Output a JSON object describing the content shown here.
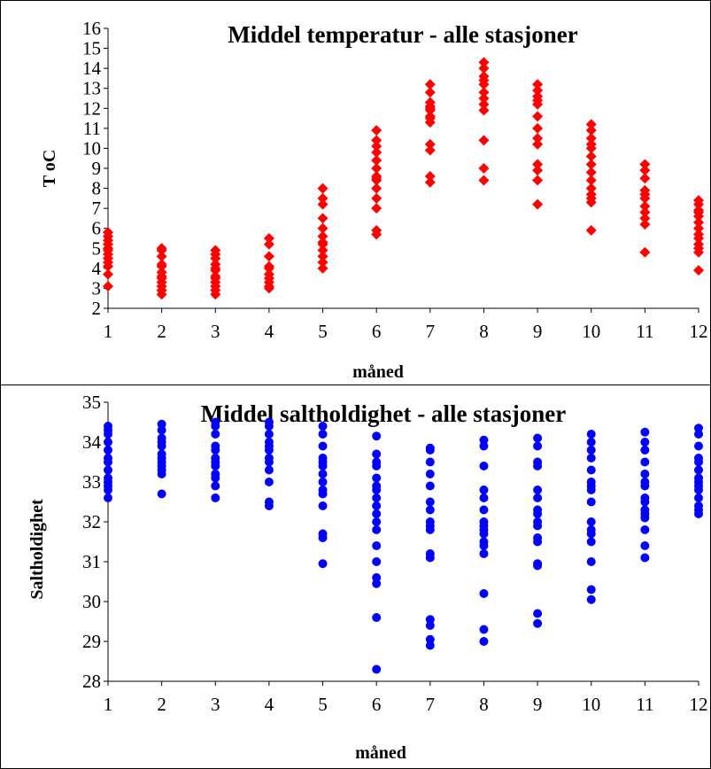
{
  "chart_data": [
    {
      "type": "scatter",
      "title": "Middel temperatur - alle stasjoner",
      "xlabel": "måned",
      "ylabel": "T oC",
      "xlim": [
        1,
        12
      ],
      "ylim": [
        2,
        16
      ],
      "x_ticks": [
        "1",
        "2",
        "3",
        "4",
        "5",
        "6",
        "7",
        "8",
        "9",
        "10",
        "11",
        "12"
      ],
      "y_ticks": [
        "2",
        "3",
        "4",
        "5",
        "6",
        "7",
        "8",
        "9",
        "10",
        "11",
        "12",
        "13",
        "14",
        "15",
        "16"
      ],
      "marker": "diamond",
      "color": "#ff0000",
      "grid": false,
      "series": [
        {
          "x": [
            1,
            1,
            1,
            1,
            1,
            1,
            1,
            1,
            1,
            1,
            1,
            1,
            2,
            2,
            2,
            2,
            2,
            2,
            2,
            2,
            2,
            2,
            2,
            2,
            3,
            3,
            3,
            3,
            3,
            3,
            3,
            3,
            3,
            3,
            3,
            3,
            4,
            4,
            4,
            4,
            4,
            4,
            4,
            4,
            4,
            4,
            5,
            5,
            5,
            5,
            5,
            5,
            5,
            5,
            5,
            5,
            5,
            5,
            6,
            6,
            6,
            6,
            6,
            6,
            6,
            6,
            6,
            6,
            6,
            6,
            6,
            6,
            7,
            7,
            7,
            7,
            7,
            7,
            7,
            7,
            7,
            7,
            7,
            7,
            7,
            8,
            8,
            8,
            8,
            8,
            8,
            8,
            8,
            8,
            8,
            8,
            8,
            9,
            9,
            9,
            9,
            9,
            9,
            9,
            9,
            9,
            9,
            9,
            9,
            9,
            10,
            10,
            10,
            10,
            10,
            10,
            10,
            10,
            10,
            10,
            10,
            10,
            10,
            10,
            11,
            11,
            11,
            11,
            11,
            11,
            11,
            11,
            11,
            11,
            11,
            12,
            12,
            12,
            12,
            12,
            12,
            12,
            12,
            12,
            12,
            12,
            12,
            12
          ],
          "y": [
            5.8,
            5.6,
            5.4,
            5.2,
            4.9,
            4.7,
            4.5,
            4.3,
            4.1,
            3.7,
            3.1,
            5.0,
            5.0,
            4.9,
            4.6,
            4.1,
            3.8,
            3.5,
            3.3,
            3.1,
            2.9,
            2.7,
            3.6,
            4.2,
            4.9,
            4.7,
            4.5,
            4.2,
            3.9,
            3.6,
            3.3,
            3.1,
            2.9,
            2.7,
            4.0,
            3.5,
            5.5,
            5.2,
            4.6,
            4.1,
            3.7,
            3.5,
            3.3,
            3.1,
            3.0,
            4.0,
            8.0,
            7.5,
            7.2,
            6.5,
            6.0,
            5.6,
            5.2,
            4.9,
            4.6,
            4.3,
            4.0,
            5.3,
            10.9,
            10.4,
            10.1,
            9.8,
            9.4,
            9.0,
            8.6,
            8.4,
            8.0,
            7.5,
            7.0,
            5.9,
            5.7,
            8.5,
            13.2,
            12.8,
            12.3,
            12.1,
            11.9,
            11.6,
            11.3,
            10.2,
            9.9,
            8.6,
            8.3,
            12.0,
            11.5,
            14.3,
            14.0,
            13.6,
            13.2,
            12.8,
            12.5,
            12.2,
            11.9,
            10.4,
            9.0,
            8.4,
            13.4,
            13.2,
            12.9,
            12.6,
            12.2,
            11.6,
            11.0,
            10.5,
            10.2,
            9.2,
            8.9,
            8.4,
            7.2,
            12.4,
            11.2,
            10.9,
            10.5,
            10.0,
            9.6,
            9.2,
            8.8,
            8.4,
            8.0,
            7.7,
            7.5,
            7.3,
            5.9,
            10.2,
            9.2,
            8.9,
            8.5,
            7.9,
            7.5,
            7.1,
            6.8,
            6.5,
            6.2,
            4.8,
            7.7,
            7.4,
            7.2,
            6.9,
            6.6,
            6.3,
            6.0,
            5.7,
            5.5,
            5.2,
            5.0,
            4.8,
            3.9,
            6.8
          ]
        }
      ]
    },
    {
      "type": "scatter",
      "title": "Middel saltholdighet - alle stasjoner",
      "xlabel": "måned",
      "ylabel": "Saltholdighet",
      "xlim": [
        1,
        12
      ],
      "ylim": [
        28,
        35
      ],
      "x_ticks": [
        "1",
        "2",
        "3",
        "4",
        "5",
        "6",
        "7",
        "8",
        "9",
        "10",
        "11",
        "12"
      ],
      "y_ticks": [
        "28",
        "29",
        "30",
        "31",
        "32",
        "33",
        "34",
        "35"
      ],
      "marker": "circle",
      "color": "#0000ff",
      "grid": false,
      "series": [
        {
          "x": [
            1,
            1,
            1,
            1,
            1,
            1,
            1,
            1,
            1,
            1,
            1,
            1,
            1,
            2,
            2,
            2,
            2,
            2,
            2,
            2,
            2,
            2,
            2,
            2,
            2,
            3,
            3,
            3,
            3,
            3,
            3,
            3,
            3,
            3,
            3,
            3,
            3,
            4,
            4,
            4,
            4,
            4,
            4,
            4,
            4,
            4,
            4,
            4,
            4,
            5,
            5,
            5,
            5,
            5,
            5,
            5,
            5,
            5,
            5,
            5,
            5,
            5,
            5,
            6,
            6,
            6,
            6,
            6,
            6,
            6,
            6,
            6,
            6,
            6,
            6,
            6,
            6,
            6,
            6,
            6,
            6,
            7,
            7,
            7,
            7,
            7,
            7,
            7,
            7,
            7,
            7,
            7,
            7,
            7,
            7,
            7,
            7,
            8,
            8,
            8,
            8,
            8,
            8,
            8,
            8,
            8,
            8,
            8,
            8,
            8,
            8,
            8,
            8,
            9,
            9,
            9,
            9,
            9,
            9,
            9,
            9,
            9,
            9,
            9,
            9,
            9,
            9,
            9,
            9,
            10,
            10,
            10,
            10,
            10,
            10,
            10,
            10,
            10,
            10,
            10,
            10,
            10,
            10,
            10,
            10,
            11,
            11,
            11,
            11,
            11,
            11,
            11,
            11,
            11,
            11,
            11,
            11,
            11,
            11,
            11,
            12,
            12,
            12,
            12,
            12,
            12,
            12,
            12,
            12,
            12,
            12,
            12,
            12,
            12
          ],
          "y": [
            34.4,
            34.3,
            34.0,
            33.8,
            33.6,
            33.5,
            33.3,
            33.1,
            33.0,
            32.9,
            32.8,
            32.6,
            34.2,
            34.45,
            34.3,
            34.1,
            33.9,
            33.7,
            33.6,
            33.5,
            33.4,
            33.3,
            33.2,
            32.7,
            34.0,
            34.5,
            34.4,
            34.2,
            33.9,
            33.8,
            33.6,
            33.5,
            33.4,
            33.2,
            33.1,
            32.9,
            32.6,
            34.5,
            34.4,
            34.2,
            34.0,
            33.9,
            33.8,
            33.6,
            33.5,
            33.3,
            33.0,
            32.5,
            32.4,
            34.4,
            34.2,
            33.9,
            33.6,
            33.4,
            33.2,
            33.0,
            32.8,
            32.7,
            32.4,
            31.7,
            31.6,
            30.95,
            33.5,
            34.15,
            33.7,
            33.5,
            33.4,
            33.1,
            32.9,
            32.6,
            32.4,
            32.2,
            32.0,
            31.8,
            31.4,
            31.0,
            30.6,
            30.45,
            29.6,
            28.3,
            32.8,
            33.85,
            33.8,
            33.5,
            33.2,
            32.9,
            32.5,
            32.3,
            32.0,
            31.9,
            31.8,
            31.2,
            31.1,
            29.55,
            29.4,
            29.05,
            28.9,
            34.05,
            33.9,
            33.4,
            32.8,
            32.6,
            32.3,
            32.0,
            31.9,
            31.7,
            31.5,
            31.4,
            31.2,
            30.2,
            29.3,
            29.0,
            31.8,
            34.1,
            33.9,
            33.5,
            33.4,
            32.8,
            32.6,
            32.3,
            32.0,
            31.9,
            31.6,
            30.95,
            30.9,
            29.7,
            29.45,
            32.2,
            31.5,
            34.2,
            34.0,
            33.8,
            33.3,
            33.0,
            32.8,
            32.5,
            32.0,
            31.8,
            31.7,
            31.5,
            31.0,
            30.3,
            30.05,
            33.6,
            32.9,
            34.25,
            34.0,
            33.8,
            33.5,
            33.2,
            32.9,
            32.6,
            32.5,
            32.2,
            32.1,
            31.8,
            31.4,
            31.1,
            33.0,
            32.3,
            34.35,
            34.2,
            33.9,
            33.6,
            33.5,
            33.3,
            33.1,
            33.0,
            32.9,
            32.8,
            32.6,
            32.4,
            32.3,
            32.2
          ]
        }
      ]
    }
  ]
}
